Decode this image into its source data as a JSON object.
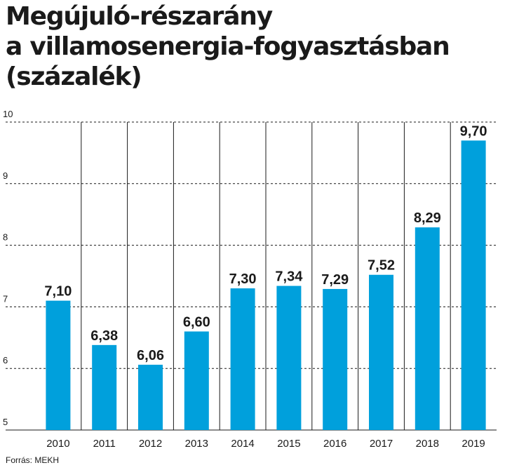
{
  "title": {
    "line1": "Megújuló-részarány",
    "line2": "a villamosenergia-fogyasztásban",
    "line3": "(százalék)"
  },
  "source": "Forrás: MEKH",
  "colors": {
    "bar": "#00a0dc",
    "text": "#1a1a1a",
    "grid": "#1a1a1a"
  },
  "chart_data": {
    "type": "bar",
    "categories": [
      "2010",
      "2011",
      "2012",
      "2013",
      "2014",
      "2015",
      "2016",
      "2017",
      "2018",
      "2019"
    ],
    "values": [
      7.1,
      6.38,
      6.06,
      6.6,
      7.3,
      7.34,
      7.29,
      7.52,
      8.29,
      9.7
    ],
    "value_labels": [
      "7,10",
      "6,38",
      "6,06",
      "6,60",
      "7,30",
      "7,34",
      "7,29",
      "7,52",
      "8,29",
      "9,70"
    ],
    "yticks": [
      5,
      6,
      7,
      8,
      9,
      10
    ],
    "ylim": [
      5,
      10
    ],
    "grid": "dashed horizontal",
    "xlabel": "",
    "ylabel": ""
  }
}
